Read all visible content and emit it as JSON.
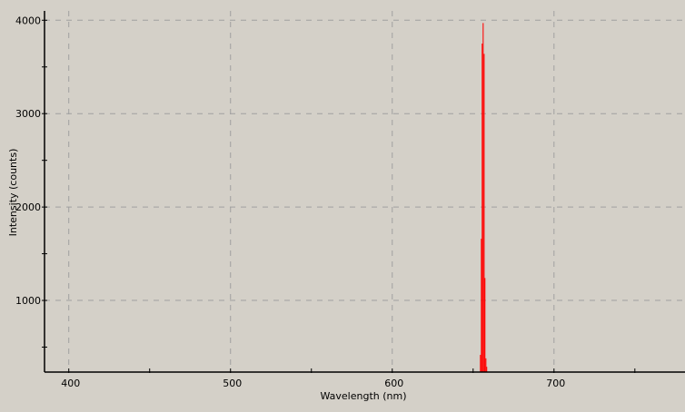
{
  "chart_data": {
    "type": "bar",
    "title": "",
    "xlabel": "Wavelength (nm)",
    "ylabel": "Intensity (counts)",
    "xlim": [
      385,
      781
    ],
    "ylim": [
      233,
      4100
    ],
    "x_ticks": [
      400,
      500,
      600,
      700
    ],
    "x_minor_ticks": [
      450,
      550,
      650,
      750
    ],
    "y_ticks": [
      1000,
      2000,
      3000,
      4000
    ],
    "y_minor_ticks": [
      500,
      1500,
      2500,
      3500
    ],
    "grid": true,
    "series_color": "#ff0000",
    "x": [
      654.5,
      655.1,
      655.6,
      656.2,
      656.8,
      657.3,
      657.9,
      658.4
    ],
    "values": [
      417,
      1660,
      3750,
      3970,
      3640,
      1240,
      380,
      290
    ]
  }
}
